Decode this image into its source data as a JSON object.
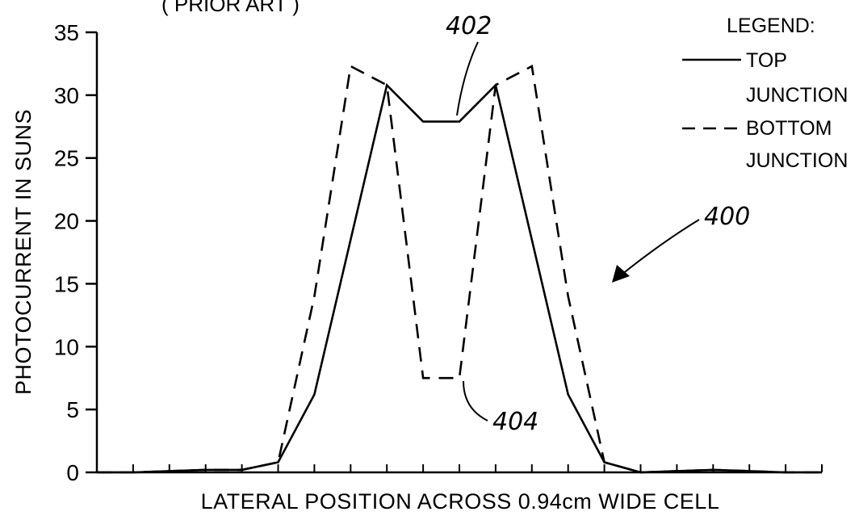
{
  "header_fragment": "( PRIOR ART )",
  "chart_data": {
    "type": "line",
    "title": "",
    "xlabel": "LATERAL POSITION ACROSS 0.94cm WIDE CELL",
    "ylabel": "PHOTOCURRENT IN SUNS",
    "x": [
      0,
      1,
      2,
      3,
      4,
      5,
      6,
      7,
      8,
      9,
      10,
      11,
      12,
      13,
      14,
      15,
      16,
      17,
      18,
      19,
      20
    ],
    "xlim": [
      0,
      20
    ],
    "ylim": [
      0,
      35
    ],
    "yticks": [
      0,
      5,
      10,
      15,
      20,
      25,
      30,
      35
    ],
    "grid": false,
    "series": [
      {
        "name": "TOP JUNCTION",
        "style": "solid",
        "values": [
          0,
          0,
          0.1,
          0.2,
          0.2,
          0.8,
          6.2,
          18.5,
          30.8,
          27.9,
          27.9,
          30.8,
          18.5,
          6.2,
          0.8,
          0,
          0.1,
          0.2,
          0.1,
          0,
          0
        ]
      },
      {
        "name": "BOTTOM JUNCTION",
        "style": "dashed",
        "values": [
          0,
          0,
          0.1,
          0.2,
          0.2,
          0.8,
          14,
          32.3,
          30.8,
          7.5,
          7.5,
          30.8,
          32.3,
          14,
          0.8,
          0,
          0.1,
          0.2,
          0.1,
          0,
          0
        ]
      }
    ],
    "legend": {
      "title": "LEGEND:",
      "placement": "top-right",
      "entries": [
        "TOP",
        "JUNCTION",
        "BOTTOM",
        "JUNCTION"
      ]
    },
    "annotations": [
      {
        "text": "402",
        "target_series": "TOP JUNCTION",
        "target_x": 9.5,
        "target_y": 27.9
      },
      {
        "text": "404",
        "target_series": "BOTTOM JUNCTION",
        "target_x": 9.5,
        "target_y": 7.5
      },
      {
        "text": "400",
        "target": "figure"
      }
    ]
  }
}
